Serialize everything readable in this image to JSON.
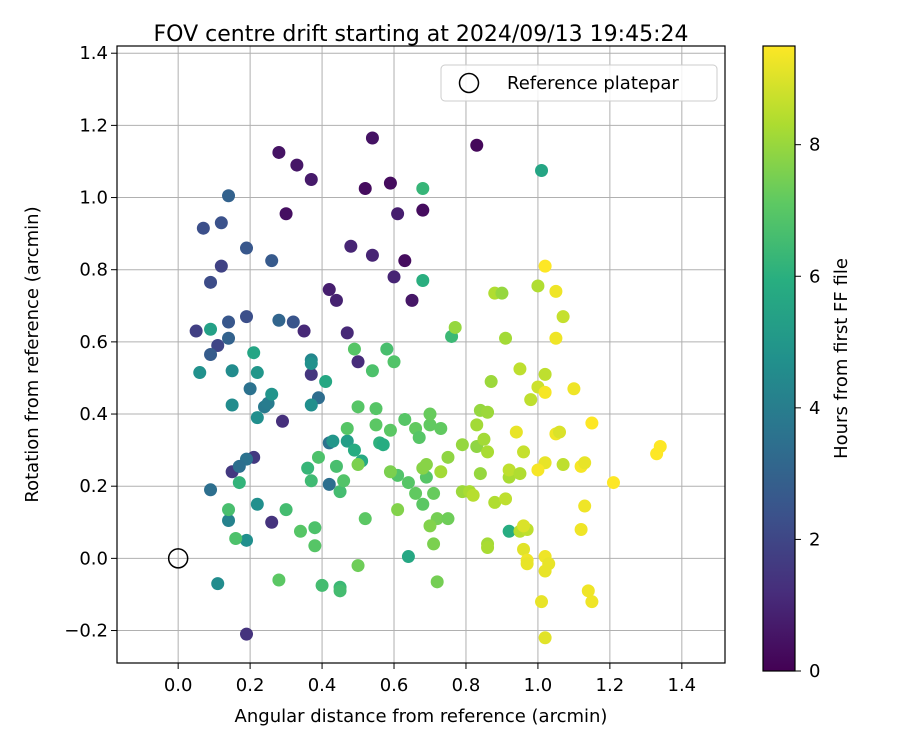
{
  "chart_data": {
    "type": "scatter",
    "title": "FOV centre drift starting at 2024/09/13 19:45:24",
    "xlabel": "Angular distance from reference (arcmin)",
    "ylabel": "Rotation from reference (arcmin)",
    "xlim": [
      -0.17,
      1.52
    ],
    "ylim": [
      -0.29,
      1.42
    ],
    "xticks": [
      0.0,
      0.2,
      0.4,
      0.6,
      0.8,
      1.0,
      1.2,
      1.4
    ],
    "xtick_labels": [
      "0.0",
      "0.2",
      "0.4",
      "0.6",
      "0.8",
      "1.0",
      "1.2",
      "1.4"
    ],
    "yticks": [
      -0.2,
      0.0,
      0.2,
      0.4,
      0.6,
      0.8,
      1.0,
      1.2,
      1.4
    ],
    "ytick_labels": [
      "−0.2",
      "0.0",
      "0.2",
      "0.4",
      "0.6",
      "0.8",
      "1.0",
      "1.2",
      "1.4"
    ],
    "grid": true,
    "legend": {
      "position": "top-right",
      "entries": [
        "Reference platepar"
      ]
    },
    "reference_point": {
      "label": "Reference platepar",
      "x": 0.0,
      "y": 0.0,
      "marker": "open-circle"
    },
    "colorbar": {
      "label": "Hours from first FF file",
      "colormap": "viridis",
      "range": [
        0,
        9.5
      ],
      "ticks": [
        0,
        2,
        4,
        6,
        8
      ],
      "tick_labels": [
        "0",
        "2",
        "4",
        "6",
        "8"
      ]
    },
    "points": [
      {
        "x": 0.28,
        "y": 1.125,
        "h": 0.5
      },
      {
        "x": 0.33,
        "y": 1.09,
        "h": 0.6
      },
      {
        "x": 0.37,
        "y": 1.05,
        "h": 0.7
      },
      {
        "x": 0.54,
        "y": 1.165,
        "h": 0.5
      },
      {
        "x": 0.83,
        "y": 1.145,
        "h": 0.2
      },
      {
        "x": 0.3,
        "y": 0.955,
        "h": 0.4
      },
      {
        "x": 0.52,
        "y": 1.025,
        "h": 0.3
      },
      {
        "x": 0.59,
        "y": 1.04,
        "h": 0.3
      },
      {
        "x": 0.61,
        "y": 0.955,
        "h": 0.8
      },
      {
        "x": 0.68,
        "y": 0.965,
        "h": 0.3
      },
      {
        "x": 0.63,
        "y": 0.825,
        "h": 0.3
      },
      {
        "x": 0.65,
        "y": 0.715,
        "h": 0.6
      },
      {
        "x": 0.48,
        "y": 0.865,
        "h": 1.0
      },
      {
        "x": 0.54,
        "y": 0.84,
        "h": 1.0
      },
      {
        "x": 0.6,
        "y": 0.78,
        "h": 1.0
      },
      {
        "x": 0.42,
        "y": 0.745,
        "h": 0.8
      },
      {
        "x": 0.44,
        "y": 0.715,
        "h": 0.9
      },
      {
        "x": 0.47,
        "y": 0.625,
        "h": 1.1
      },
      {
        "x": 0.5,
        "y": 0.545,
        "h": 1.2
      },
      {
        "x": 0.35,
        "y": 0.63,
        "h": 1.1
      },
      {
        "x": 0.37,
        "y": 0.51,
        "h": 1.5
      },
      {
        "x": 0.29,
        "y": 0.38,
        "h": 1.3
      },
      {
        "x": 0.26,
        "y": 0.1,
        "h": 1.4
      },
      {
        "x": 0.19,
        "y": -0.21,
        "h": 1.4
      },
      {
        "x": 0.15,
        "y": 0.24,
        "h": 1.6
      },
      {
        "x": 0.21,
        "y": 0.28,
        "h": 1.6
      },
      {
        "x": 0.05,
        "y": 0.63,
        "h": 1.8
      },
      {
        "x": 0.11,
        "y": 0.59,
        "h": 2.0
      },
      {
        "x": 0.12,
        "y": 0.81,
        "h": 1.9
      },
      {
        "x": 0.07,
        "y": 0.915,
        "h": 2.3
      },
      {
        "x": 0.09,
        "y": 0.765,
        "h": 2.2
      },
      {
        "x": 0.12,
        "y": 0.93,
        "h": 2.4
      },
      {
        "x": 0.14,
        "y": 1.005,
        "h": 3.0
      },
      {
        "x": 0.19,
        "y": 0.86,
        "h": 2.6
      },
      {
        "x": 0.26,
        "y": 0.825,
        "h": 2.7
      },
      {
        "x": 0.19,
        "y": 0.67,
        "h": 2.3
      },
      {
        "x": 0.14,
        "y": 0.655,
        "h": 2.6
      },
      {
        "x": 0.09,
        "y": 0.565,
        "h": 2.8
      },
      {
        "x": 0.14,
        "y": 0.61,
        "h": 3.0
      },
      {
        "x": 0.28,
        "y": 0.66,
        "h": 3.1
      },
      {
        "x": 0.32,
        "y": 0.655,
        "h": 2.5
      },
      {
        "x": 0.09,
        "y": 0.19,
        "h": 3.5
      },
      {
        "x": 0.19,
        "y": 0.275,
        "h": 3.6
      },
      {
        "x": 0.17,
        "y": 0.255,
        "h": 3.5
      },
      {
        "x": 0.2,
        "y": 0.47,
        "h": 3.6
      },
      {
        "x": 0.24,
        "y": 0.42,
        "h": 3.9
      },
      {
        "x": 0.25,
        "y": 0.43,
        "h": 4.0
      },
      {
        "x": 0.39,
        "y": 0.445,
        "h": 3.4
      },
      {
        "x": 0.42,
        "y": 0.32,
        "h": 3.6
      },
      {
        "x": 0.42,
        "y": 0.205,
        "h": 3.5
      },
      {
        "x": 0.14,
        "y": 0.105,
        "h": 4.2
      },
      {
        "x": 0.11,
        "y": -0.07,
        "h": 4.6
      },
      {
        "x": 0.19,
        "y": 0.05,
        "h": 4.7
      },
      {
        "x": 0.22,
        "y": 0.15,
        "h": 4.7
      },
      {
        "x": 0.15,
        "y": 0.52,
        "h": 4.6
      },
      {
        "x": 0.15,
        "y": 0.425,
        "h": 4.6
      },
      {
        "x": 0.06,
        "y": 0.515,
        "h": 4.8
      },
      {
        "x": 0.22,
        "y": 0.39,
        "h": 4.7
      },
      {
        "x": 0.22,
        "y": 0.515,
        "h": 5.0
      },
      {
        "x": 0.26,
        "y": 0.455,
        "h": 4.9
      },
      {
        "x": 0.37,
        "y": 0.55,
        "h": 4.4
      },
      {
        "x": 0.37,
        "y": 0.54,
        "h": 4.8
      },
      {
        "x": 0.37,
        "y": 0.425,
        "h": 4.7
      },
      {
        "x": 0.43,
        "y": 0.325,
        "h": 5.0
      },
      {
        "x": 0.47,
        "y": 0.325,
        "h": 5.3
      },
      {
        "x": 0.09,
        "y": 0.635,
        "h": 5.4
      },
      {
        "x": 0.21,
        "y": 0.57,
        "h": 5.6
      },
      {
        "x": 0.41,
        "y": 0.49,
        "h": 5.7
      },
      {
        "x": 1.01,
        "y": 1.075,
        "h": 5.6
      },
      {
        "x": 0.68,
        "y": 1.025,
        "h": 6.3
      },
      {
        "x": 0.68,
        "y": 0.77,
        "h": 6.0
      },
      {
        "x": 0.76,
        "y": 0.615,
        "h": 6.4
      },
      {
        "x": 0.49,
        "y": 0.3,
        "h": 5.9
      },
      {
        "x": 0.51,
        "y": 0.27,
        "h": 5.8
      },
      {
        "x": 0.56,
        "y": 0.32,
        "h": 6.1
      },
      {
        "x": 0.57,
        "y": 0.315,
        "h": 5.9
      },
      {
        "x": 0.64,
        "y": 0.005,
        "h": 5.7
      },
      {
        "x": 0.92,
        "y": 0.075,
        "h": 5.9
      },
      {
        "x": 0.17,
        "y": 0.21,
        "h": 6.2
      },
      {
        "x": 0.14,
        "y": 0.135,
        "h": 6.7
      },
      {
        "x": 0.16,
        "y": 0.055,
        "h": 6.8
      },
      {
        "x": 0.3,
        "y": 0.135,
        "h": 6.6
      },
      {
        "x": 0.34,
        "y": 0.075,
        "h": 7.0
      },
      {
        "x": 0.28,
        "y": -0.06,
        "h": 7.1
      },
      {
        "x": 0.4,
        "y": -0.075,
        "h": 6.6
      },
      {
        "x": 0.45,
        "y": -0.08,
        "h": 6.4
      },
      {
        "x": 0.45,
        "y": -0.09,
        "h": 6.6
      },
      {
        "x": 0.38,
        "y": 0.085,
        "h": 6.8
      },
      {
        "x": 0.38,
        "y": 0.035,
        "h": 7.0
      },
      {
        "x": 0.36,
        "y": 0.25,
        "h": 6.3
      },
      {
        "x": 0.37,
        "y": 0.215,
        "h": 6.5
      },
      {
        "x": 0.39,
        "y": 0.28,
        "h": 6.8
      },
      {
        "x": 0.44,
        "y": 0.255,
        "h": 6.7
      },
      {
        "x": 0.45,
        "y": 0.185,
        "h": 6.6
      },
      {
        "x": 0.46,
        "y": 0.215,
        "h": 6.9
      },
      {
        "x": 0.47,
        "y": 0.36,
        "h": 7.0
      },
      {
        "x": 0.49,
        "y": 0.58,
        "h": 7.0
      },
      {
        "x": 0.54,
        "y": 0.52,
        "h": 6.8
      },
      {
        "x": 0.58,
        "y": 0.58,
        "h": 6.7
      },
      {
        "x": 0.6,
        "y": 0.545,
        "h": 6.9
      },
      {
        "x": 0.5,
        "y": 0.42,
        "h": 7.0
      },
      {
        "x": 0.55,
        "y": 0.415,
        "h": 7.0
      },
      {
        "x": 0.55,
        "y": 0.37,
        "h": 7.1
      },
      {
        "x": 0.59,
        "y": 0.355,
        "h": 7.1
      },
      {
        "x": 0.63,
        "y": 0.385,
        "h": 7.0
      },
      {
        "x": 0.61,
        "y": 0.23,
        "h": 6.9
      },
      {
        "x": 0.64,
        "y": 0.21,
        "h": 7.0
      },
      {
        "x": 0.66,
        "y": 0.18,
        "h": 7.2
      },
      {
        "x": 0.68,
        "y": 0.15,
        "h": 7.1
      },
      {
        "x": 0.69,
        "y": 0.225,
        "h": 7.0
      },
      {
        "x": 0.66,
        "y": 0.36,
        "h": 7.2
      },
      {
        "x": 0.67,
        "y": 0.335,
        "h": 7.0
      },
      {
        "x": 0.7,
        "y": 0.37,
        "h": 7.2
      },
      {
        "x": 0.7,
        "y": 0.4,
        "h": 7.3
      },
      {
        "x": 0.73,
        "y": 0.36,
        "h": 7.2
      },
      {
        "x": 0.71,
        "y": 0.18,
        "h": 7.3
      },
      {
        "x": 0.52,
        "y": 0.11,
        "h": 7.1
      },
      {
        "x": 0.5,
        "y": -0.02,
        "h": 7.4
      },
      {
        "x": 0.72,
        "y": -0.065,
        "h": 7.5
      },
      {
        "x": 0.71,
        "y": 0.04,
        "h": 7.6
      },
      {
        "x": 0.72,
        "y": 0.11,
        "h": 7.5
      },
      {
        "x": 0.7,
        "y": 0.09,
        "h": 7.7
      },
      {
        "x": 0.75,
        "y": 0.11,
        "h": 7.4
      },
      {
        "x": 0.59,
        "y": 0.24,
        "h": 7.6
      },
      {
        "x": 0.61,
        "y": 0.135,
        "h": 7.7
      },
      {
        "x": 0.5,
        "y": 0.26,
        "h": 7.6
      },
      {
        "x": 0.68,
        "y": 0.25,
        "h": 7.8
      },
      {
        "x": 0.69,
        "y": 0.26,
        "h": 7.8
      },
      {
        "x": 0.73,
        "y": 0.24,
        "h": 8.2
      },
      {
        "x": 0.75,
        "y": 0.28,
        "h": 7.9
      },
      {
        "x": 0.77,
        "y": 0.64,
        "h": 8.0
      },
      {
        "x": 0.79,
        "y": 0.315,
        "h": 8.0
      },
      {
        "x": 0.83,
        "y": 0.31,
        "h": 7.9
      },
      {
        "x": 0.83,
        "y": 0.37,
        "h": 8.2
      },
      {
        "x": 0.84,
        "y": 0.41,
        "h": 8.0
      },
      {
        "x": 0.86,
        "y": 0.405,
        "h": 8.1
      },
      {
        "x": 0.85,
        "y": 0.33,
        "h": 8.2
      },
      {
        "x": 0.86,
        "y": 0.295,
        "h": 8.3
      },
      {
        "x": 0.84,
        "y": 0.235,
        "h": 8.0
      },
      {
        "x": 0.79,
        "y": 0.185,
        "h": 8.1
      },
      {
        "x": 0.81,
        "y": 0.185,
        "h": 8.3
      },
      {
        "x": 0.82,
        "y": 0.175,
        "h": 8.5
      },
      {
        "x": 0.86,
        "y": 0.04,
        "h": 8.2
      },
      {
        "x": 0.86,
        "y": 0.03,
        "h": 8.3
      },
      {
        "x": 0.88,
        "y": 0.155,
        "h": 8.4
      },
      {
        "x": 0.87,
        "y": 0.49,
        "h": 8.1
      },
      {
        "x": 0.88,
        "y": 0.735,
        "h": 8.4
      },
      {
        "x": 0.9,
        "y": 0.735,
        "h": 8.0
      },
      {
        "x": 0.91,
        "y": 0.61,
        "h": 8.2
      },
      {
        "x": 0.92,
        "y": 0.225,
        "h": 8.3
      },
      {
        "x": 0.92,
        "y": 0.245,
        "h": 8.6
      },
      {
        "x": 0.91,
        "y": 0.165,
        "h": 8.6
      },
      {
        "x": 0.95,
        "y": 0.235,
        "h": 8.4
      },
      {
        "x": 0.96,
        "y": 0.295,
        "h": 8.7
      },
      {
        "x": 0.95,
        "y": 0.075,
        "h": 8.5
      },
      {
        "x": 0.97,
        "y": 0.08,
        "h": 8.6
      },
      {
        "x": 0.96,
        "y": 0.09,
        "h": 9.0
      },
      {
        "x": 0.96,
        "y": 0.025,
        "h": 9.1
      },
      {
        "x": 0.97,
        "y": -0.005,
        "h": 9.3
      },
      {
        "x": 0.97,
        "y": -0.015,
        "h": 9.2
      },
      {
        "x": 0.95,
        "y": 0.525,
        "h": 8.6
      },
      {
        "x": 0.98,
        "y": 0.44,
        "h": 8.6
      },
      {
        "x": 1.0,
        "y": 0.755,
        "h": 8.4
      },
      {
        "x": 1.0,
        "y": 0.475,
        "h": 8.8
      },
      {
        "x": 1.02,
        "y": 0.51,
        "h": 8.6
      },
      {
        "x": 1.02,
        "y": 0.46,
        "h": 9.4
      },
      {
        "x": 1.02,
        "y": 0.81,
        "h": 9.5
      },
      {
        "x": 1.05,
        "y": 0.74,
        "h": 9.3
      },
      {
        "x": 1.05,
        "y": 0.61,
        "h": 9.3
      },
      {
        "x": 1.07,
        "y": 0.67,
        "h": 8.7
      },
      {
        "x": 1.05,
        "y": 0.345,
        "h": 9.3
      },
      {
        "x": 1.06,
        "y": 0.35,
        "h": 9.0
      },
      {
        "x": 1.07,
        "y": 0.26,
        "h": 8.6
      },
      {
        "x": 1.02,
        "y": 0.265,
        "h": 9.2
      },
      {
        "x": 1.0,
        "y": 0.245,
        "h": 9.4
      },
      {
        "x": 1.02,
        "y": 0.005,
        "h": 9.3
      },
      {
        "x": 1.02,
        "y": -0.035,
        "h": 9.2
      },
      {
        "x": 1.03,
        "y": -0.015,
        "h": 9.2
      },
      {
        "x": 1.01,
        "y": -0.12,
        "h": 9.2
      },
      {
        "x": 1.02,
        "y": -0.22,
        "h": 9.1
      },
      {
        "x": 0.94,
        "y": 0.35,
        "h": 9.2
      },
      {
        "x": 1.1,
        "y": 0.47,
        "h": 9.3
      },
      {
        "x": 1.12,
        "y": 0.255,
        "h": 9.4
      },
      {
        "x": 1.13,
        "y": 0.265,
        "h": 9.2
      },
      {
        "x": 1.13,
        "y": 0.145,
        "h": 9.3
      },
      {
        "x": 1.12,
        "y": 0.08,
        "h": 9.3
      },
      {
        "x": 1.14,
        "y": -0.09,
        "h": 9.3
      },
      {
        "x": 1.15,
        "y": -0.12,
        "h": 9.3
      },
      {
        "x": 1.15,
        "y": 0.375,
        "h": 9.5
      },
      {
        "x": 1.21,
        "y": 0.21,
        "h": 9.5
      },
      {
        "x": 1.33,
        "y": 0.29,
        "h": 9.5
      },
      {
        "x": 1.34,
        "y": 0.31,
        "h": 9.5
      }
    ]
  }
}
